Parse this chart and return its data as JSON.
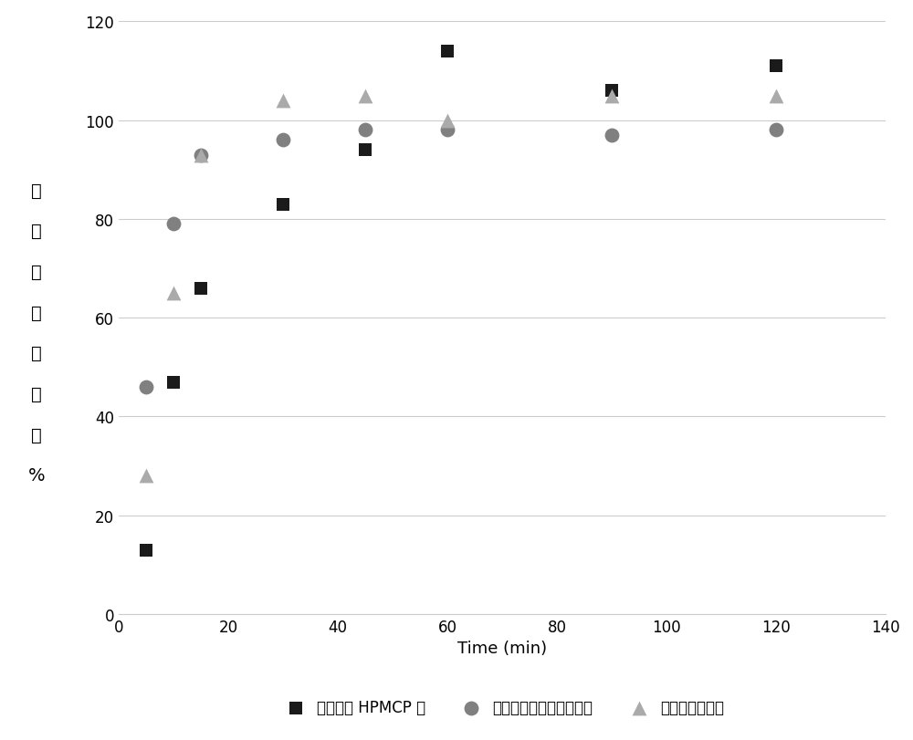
{
  "title": "",
  "xlabel": "Time (min)",
  "ylabel_chars": [
    "溶",
    "解",
    "的",
    "尼",
    "洛",
    "替",
    "尼",
    "%"
  ],
  "xlim": [
    0,
    140
  ],
  "ylim": [
    0,
    120
  ],
  "xticks": [
    0,
    20,
    40,
    60,
    80,
    100,
    120,
    140
  ],
  "yticks": [
    0,
    20,
    40,
    60,
    80,
    100,
    120
  ],
  "series": [
    {
      "label": "尼洛替尼 HPMCP 盐",
      "color": "#1a1a1a",
      "marker": "s",
      "markersize": 100,
      "x": [
        5,
        10,
        15,
        30,
        45,
        60,
        90,
        120
      ],
      "y": [
        13,
        47,
        66,
        83,
        94,
        114,
        106,
        111
      ]
    },
    {
      "label": "尼洛替尼盐酸盐一水合物",
      "color": "#808080",
      "marker": "o",
      "markersize": 130,
      "x": [
        5,
        10,
        15,
        30,
        45,
        60,
        90,
        120
      ],
      "y": [
        46,
        79,
        93,
        96,
        98,
        98,
        97,
        98
      ]
    },
    {
      "label": "尼洛替尼游离碱",
      "color": "#aaaaaa",
      "marker": "^",
      "markersize": 130,
      "x": [
        5,
        10,
        15,
        30,
        45,
        60,
        90,
        120
      ],
      "y": [
        28,
        65,
        93,
        104,
        105,
        100,
        105,
        105
      ]
    }
  ],
  "legend_ncol": 3,
  "grid_color": "#cccccc",
  "background_color": "#ffffff",
  "ylabel_fontsize": 14,
  "xlabel_fontsize": 13,
  "tick_fontsize": 12,
  "legend_fontsize": 12
}
